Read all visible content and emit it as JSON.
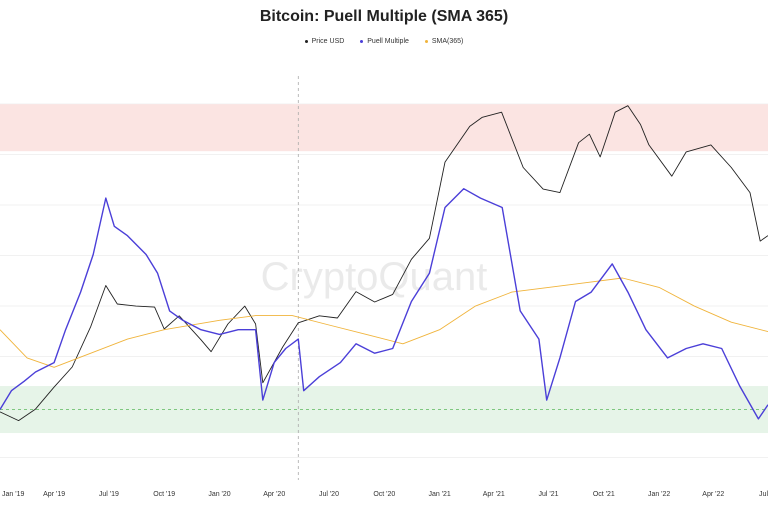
{
  "chart_data": {
    "type": "line",
    "title": "Bitcoin: Puell Multiple (SMA 365)",
    "watermark": "CryptoQuant",
    "legend": [
      {
        "name": "Price USD",
        "color": "#222222"
      },
      {
        "name": "Puell Multiple",
        "color": "#4b3fd8"
      },
      {
        "name": "SMA(365)",
        "color": "#f0b43c"
      }
    ],
    "x_range": [
      "2019-01-01",
      "2022-07-01"
    ],
    "x_tick_labels": [
      "Jan '19",
      "Apr '19",
      "Jul '19",
      "Oct '19",
      "Jan '20",
      "Apr '20",
      "Jul '20",
      "Oct '20",
      "Jan '21",
      "Apr '21",
      "Jul '21",
      "Oct '21",
      "Jan '22",
      "Apr '22",
      "Jul"
    ],
    "x_tick_dates": [
      "2019-01-01",
      "2019-04-01",
      "2019-07-01",
      "2019-10-01",
      "2020-01-01",
      "2020-04-01",
      "2020-07-01",
      "2020-10-01",
      "2021-01-01",
      "2021-04-01",
      "2021-07-01",
      "2021-10-01",
      "2022-01-01",
      "2022-04-01",
      "2022-07-01"
    ],
    "event_line_date": "2020-05-11",
    "puell_ylim": [
      0,
      4.3
    ],
    "overbought_band": [
      3.5,
      4.0
    ],
    "oversold_band": [
      0.5,
      1.0
    ],
    "reference_level": 0.75,
    "series": [
      {
        "name": "Puell Multiple",
        "color": "#4b3fd8",
        "points": [
          [
            "2019-01-01",
            0.75
          ],
          [
            "2019-01-20",
            0.95
          ],
          [
            "2019-02-10",
            1.05
          ],
          [
            "2019-03-01",
            1.15
          ],
          [
            "2019-04-01",
            1.25
          ],
          [
            "2019-04-20",
            1.6
          ],
          [
            "2019-05-15",
            2.0
          ],
          [
            "2019-06-05",
            2.4
          ],
          [
            "2019-06-26",
            3.0
          ],
          [
            "2019-07-10",
            2.7
          ],
          [
            "2019-08-01",
            2.6
          ],
          [
            "2019-09-01",
            2.4
          ],
          [
            "2019-09-20",
            2.2
          ],
          [
            "2019-10-10",
            1.8
          ],
          [
            "2019-11-01",
            1.7
          ],
          [
            "2019-12-01",
            1.6
          ],
          [
            "2020-01-01",
            1.55
          ],
          [
            "2020-02-01",
            1.6
          ],
          [
            "2020-03-01",
            1.6
          ],
          [
            "2020-03-13",
            0.85
          ],
          [
            "2020-04-01",
            1.25
          ],
          [
            "2020-04-20",
            1.4
          ],
          [
            "2020-05-11",
            1.5
          ],
          [
            "2020-05-20",
            0.95
          ],
          [
            "2020-06-15",
            1.1
          ],
          [
            "2020-07-20",
            1.25
          ],
          [
            "2020-08-15",
            1.45
          ],
          [
            "2020-09-15",
            1.35
          ],
          [
            "2020-10-15",
            1.4
          ],
          [
            "2020-11-15",
            1.9
          ],
          [
            "2020-12-15",
            2.2
          ],
          [
            "2021-01-10",
            2.9
          ],
          [
            "2021-02-10",
            3.1
          ],
          [
            "2021-03-10",
            3.0
          ],
          [
            "2021-04-15",
            2.9
          ],
          [
            "2021-05-15",
            1.8
          ],
          [
            "2021-06-15",
            1.5
          ],
          [
            "2021-06-28",
            0.85
          ],
          [
            "2021-07-20",
            1.3
          ],
          [
            "2021-08-15",
            1.9
          ],
          [
            "2021-09-10",
            2.0
          ],
          [
            "2021-10-15",
            2.3
          ],
          [
            "2021-11-10",
            2.0
          ],
          [
            "2021-12-10",
            1.6
          ],
          [
            "2022-01-15",
            1.3
          ],
          [
            "2022-02-15",
            1.4
          ],
          [
            "2022-03-15",
            1.45
          ],
          [
            "2022-04-15",
            1.4
          ],
          [
            "2022-05-15",
            1.0
          ],
          [
            "2022-06-15",
            0.65
          ],
          [
            "2022-07-01",
            0.8
          ]
        ]
      },
      {
        "name": "SMA(365)",
        "color": "#f0b43c",
        "points": [
          [
            "2019-01-01",
            1.6
          ],
          [
            "2019-02-15",
            1.3
          ],
          [
            "2019-04-01",
            1.2
          ],
          [
            "2019-06-01",
            1.35
          ],
          [
            "2019-08-01",
            1.5
          ],
          [
            "2019-10-01",
            1.6
          ],
          [
            "2020-01-01",
            1.7
          ],
          [
            "2020-03-01",
            1.75
          ],
          [
            "2020-05-01",
            1.75
          ],
          [
            "2020-07-01",
            1.65
          ],
          [
            "2020-09-01",
            1.55
          ],
          [
            "2020-11-01",
            1.45
          ],
          [
            "2021-01-01",
            1.6
          ],
          [
            "2021-03-01",
            1.85
          ],
          [
            "2021-05-01",
            2.0
          ],
          [
            "2021-07-01",
            2.05
          ],
          [
            "2021-09-01",
            2.1
          ],
          [
            "2021-11-01",
            2.15
          ],
          [
            "2022-01-01",
            2.05
          ],
          [
            "2022-03-01",
            1.85
          ],
          [
            "2022-05-01",
            1.68
          ],
          [
            "2022-07-01",
            1.58
          ]
        ]
      },
      {
        "name": "Price USD",
        "color": "#222222",
        "points": [
          [
            "2019-01-01",
            3800
          ],
          [
            "2019-02-01",
            3500
          ],
          [
            "2019-03-01",
            3900
          ],
          [
            "2019-04-01",
            4800
          ],
          [
            "2019-05-01",
            5800
          ],
          [
            "2019-06-01",
            8500
          ],
          [
            "2019-06-26",
            12500
          ],
          [
            "2019-07-15",
            10500
          ],
          [
            "2019-08-15",
            10300
          ],
          [
            "2019-09-15",
            10200
          ],
          [
            "2019-10-01",
            8300
          ],
          [
            "2019-10-26",
            9400
          ],
          [
            "2019-12-01",
            7500
          ],
          [
            "2019-12-18",
            6700
          ],
          [
            "2020-01-15",
            8700
          ],
          [
            "2020-02-12",
            10300
          ],
          [
            "2020-03-01",
            8700
          ],
          [
            "2020-03-13",
            5000
          ],
          [
            "2020-04-15",
            7000
          ],
          [
            "2020-05-11",
            8800
          ],
          [
            "2020-06-15",
            9400
          ],
          [
            "2020-07-15",
            9200
          ],
          [
            "2020-08-15",
            11800
          ],
          [
            "2020-09-15",
            10700
          ],
          [
            "2020-10-15",
            11500
          ],
          [
            "2020-11-15",
            16000
          ],
          [
            "2020-12-15",
            19500
          ],
          [
            "2021-01-10",
            40000
          ],
          [
            "2021-02-20",
            56000
          ],
          [
            "2021-03-13",
            61000
          ],
          [
            "2021-04-14",
            64000
          ],
          [
            "2021-05-20",
            38000
          ],
          [
            "2021-06-22",
            31000
          ],
          [
            "2021-07-20",
            30000
          ],
          [
            "2021-08-20",
            48000
          ],
          [
            "2021-09-07",
            52000
          ],
          [
            "2021-09-25",
            42000
          ],
          [
            "2021-10-20",
            64000
          ],
          [
            "2021-11-10",
            68000
          ],
          [
            "2021-12-01",
            57000
          ],
          [
            "2021-12-15",
            47000
          ],
          [
            "2022-01-22",
            35000
          ],
          [
            "2022-02-15",
            44000
          ],
          [
            "2022-03-28",
            47000
          ],
          [
            "2022-05-01",
            38000
          ],
          [
            "2022-06-01",
            30000
          ],
          [
            "2022-06-18",
            19000
          ],
          [
            "2022-07-01",
            20000
          ]
        ]
      }
    ]
  }
}
